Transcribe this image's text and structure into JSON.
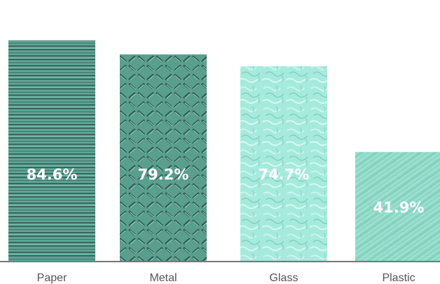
{
  "chart_data": {
    "type": "bar",
    "categories": [
      "Paper",
      "Metal",
      "Glass",
      "Plastic"
    ],
    "values": [
      84.6,
      79.2,
      74.7,
      41.9
    ],
    "value_labels": [
      "84.6%",
      "79.2%",
      "74.7%",
      "41.9%"
    ],
    "ylim": [
      0,
      100
    ],
    "grid": false,
    "title": "",
    "xlabel": "",
    "ylabel": "",
    "colors": [
      "#5fa394",
      "#5a9e8e",
      "#a6eadd",
      "#8ed8c6"
    ],
    "textures": [
      "horizontal-lines",
      "diamond-plate",
      "rippled-glass",
      "brushed-diagonal"
    ]
  }
}
